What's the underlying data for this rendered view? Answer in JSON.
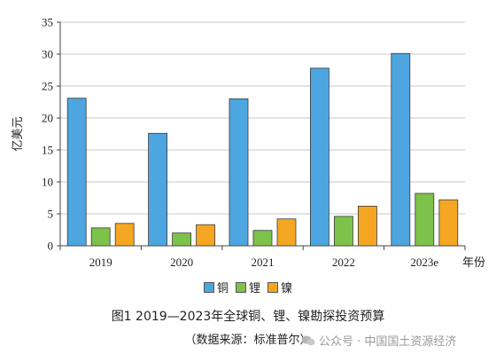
{
  "chart_data": {
    "type": "bar",
    "categories": [
      "2019",
      "2020",
      "2021",
      "2022",
      "2023e"
    ],
    "series": [
      {
        "name": "铜",
        "color": "#4da6df",
        "values": [
          23.1,
          17.6,
          23.0,
          27.8,
          30.1
        ]
      },
      {
        "name": "锂",
        "color": "#7dc24b",
        "values": [
          2.8,
          2.0,
          2.4,
          4.6,
          8.2
        ]
      },
      {
        "name": "镍",
        "color": "#f5a623",
        "values": [
          3.5,
          3.3,
          4.2,
          6.2,
          7.2
        ]
      }
    ],
    "ylabel": "亿美元",
    "xlabel": "年份",
    "ylim": [
      0,
      35
    ],
    "yticks": [
      0,
      5,
      10,
      15,
      20,
      25,
      30,
      35
    ],
    "grid": true
  },
  "caption": "图1  2019—2023年全球铜、锂、镍勘探投资预算",
  "source": "（数据来源：标准普尔）",
  "watermark": "公众号 · 中国国土资源经济"
}
